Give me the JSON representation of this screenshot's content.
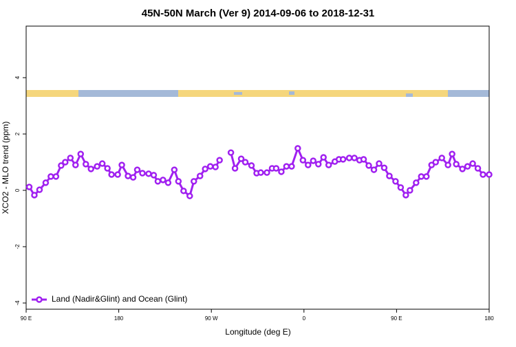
{
  "chart_data": {
    "type": "line",
    "title": "45N-50N March (Ver 9)   2014-09-06 to 2018-12-31",
    "x_label": "Longitude (deg E)",
    "y_label": "XCO2 - MLO trend (ppm)",
    "x": [
      93,
      98,
      103,
      109,
      114,
      119,
      124,
      128,
      133,
      138,
      143,
      148,
      153,
      159,
      164,
      169,
      173,
      179,
      183,
      189,
      194,
      198,
      203,
      209,
      214,
      218,
      223,
      228,
      234,
      238,
      243,
      249,
      253,
      259,
      264,
      269,
      274,
      278,
      283,
      289,
      293,
      299,
      303,
      309,
      314,
      318,
      324,
      329,
      333,
      338,
      343,
      348,
      354,
      359,
      364,
      369,
      374,
      379,
      384,
      390,
      394,
      398,
      404,
      409,
      414,
      418,
      423,
      428,
      433,
      438,
      443,
      449,
      454,
      459,
      463,
      469,
      474,
      479,
      484,
      488,
      494,
      500,
      504,
      508,
      514,
      519,
      524,
      529,
      534,
      540
    ],
    "series": [
      {
        "name": "Land (Nadir&Glint) and Ocean (Glint)",
        "color": "#a020f0",
        "values": [
          0.12,
          -0.17,
          0.02,
          0.27,
          0.49,
          0.49,
          0.88,
          1.0,
          1.15,
          0.9,
          1.29,
          0.93,
          0.76,
          0.85,
          0.95,
          0.78,
          0.56,
          0.56,
          0.9,
          0.51,
          0.46,
          0.73,
          0.61,
          0.59,
          0.54,
          0.32,
          0.37,
          0.27,
          0.73,
          0.32,
          -0.02,
          -0.2,
          0.32,
          0.51,
          0.76,
          0.85,
          0.83,
          1.07,
          null,
          1.34,
          0.78,
          1.12,
          1.0,
          0.88,
          0.61,
          0.63,
          0.63,
          0.78,
          0.78,
          0.66,
          0.85,
          0.85,
          1.49,
          1.07,
          0.9,
          1.05,
          0.93,
          1.17,
          0.9,
          1.02,
          1.1,
          1.1,
          1.15,
          1.15,
          1.07,
          1.1,
          0.88,
          0.73,
          0.95,
          0.8,
          0.51,
          0.32,
          0.1,
          -0.17,
          0,
          0.27,
          0.49,
          0.49,
          0.9,
          1.0,
          1.15,
          0.9,
          1.29,
          0.93,
          0.76,
          0.85,
          0.95,
          0.78,
          0.56,
          0.56
        ]
      }
    ],
    "xlim": [
      90,
      540
    ],
    "xticks": [
      {
        "value": 90,
        "label": "90 E"
      },
      180,
      {
        "value": 270,
        "label": "90 W"
      },
      {
        "value": 360,
        "label": "0"
      },
      {
        "value": 450,
        "label": "90 E"
      },
      {
        "value": 540,
        "label": "180"
      }
    ],
    "ylim": [
      -4.22,
      5.83
    ],
    "yticks": [
      -4,
      -2,
      0,
      2,
      4
    ],
    "legend": "bottom-left"
  }
}
